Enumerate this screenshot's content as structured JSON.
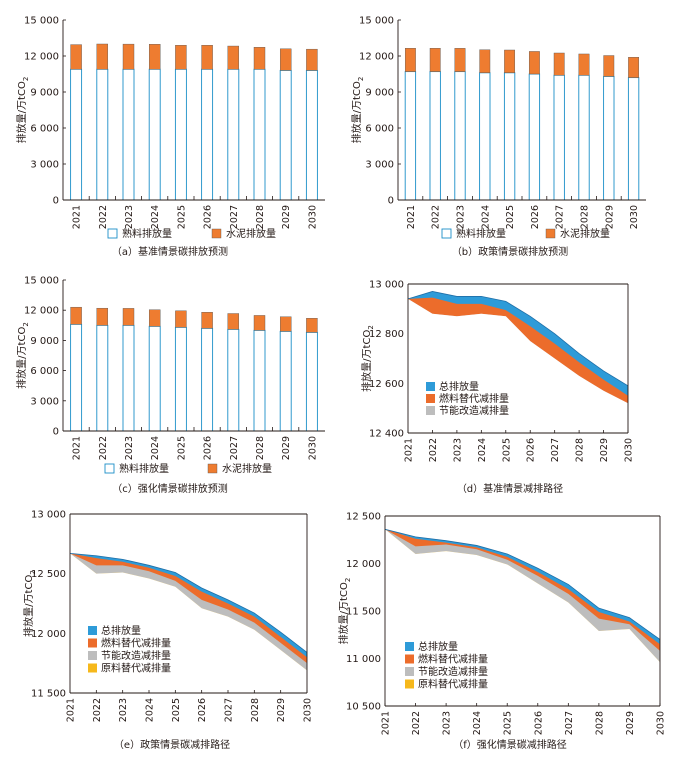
{
  "colors": {
    "fuel": "#1b8fc8",
    "cement": "#ee7c30",
    "total": "#2e9bd8",
    "fuel_sub": "#ec6c2b",
    "energy": "#bdbdbd",
    "raw": "#f6b81b",
    "axis": "#231815"
  },
  "chart_data": [
    {
      "type": "bar",
      "stacked": true,
      "caption": "（a）基准情景碳排放预测",
      "ylabel": "排放量/万tCO",
      "ylabel_sub": "2",
      "ylim": [
        0,
        15000
      ],
      "yticks": [
        "0",
        "3 000",
        "6 000",
        "9 000",
        "12 000",
        "15 000"
      ],
      "categories": [
        "2021",
        "2022",
        "2023",
        "2024",
        "2025",
        "2026",
        "2027",
        "2028",
        "2029",
        "2030"
      ],
      "series": [
        {
          "name": "熟料排放量",
          "style": "hollow",
          "values": [
            10900,
            10900,
            10900,
            10900,
            10900,
            10900,
            10900,
            10900,
            10800,
            10800
          ]
        },
        {
          "name": "水泥排放量",
          "style": "filled",
          "values": [
            2050,
            2100,
            2090,
            2080,
            2000,
            2000,
            1930,
            1830,
            1800,
            1770
          ]
        }
      ],
      "legend": "bottom"
    },
    {
      "type": "bar",
      "stacked": true,
      "caption": "（b）政策情景碳排放预测",
      "ylabel": "排放量/万tCO",
      "ylabel_sub": "2",
      "ylim": [
        0,
        15000
      ],
      "yticks": [
        "0",
        "3 000",
        "6 000",
        "9 000",
        "12 000",
        "15 000"
      ],
      "categories": [
        "2021",
        "2022",
        "2023",
        "2024",
        "2025",
        "2026",
        "2027",
        "2028",
        "2029",
        "2030"
      ],
      "series": [
        {
          "name": "熟料排放量",
          "style": "hollow",
          "values": [
            10700,
            10700,
            10700,
            10600,
            10600,
            10500,
            10400,
            10400,
            10300,
            10200
          ]
        },
        {
          "name": "水泥排放量",
          "style": "filled",
          "values": [
            1950,
            1950,
            1940,
            1920,
            1900,
            1880,
            1850,
            1770,
            1740,
            1700
          ]
        }
      ],
      "legend": "bottom"
    },
    {
      "type": "bar",
      "stacked": true,
      "caption": "（c）强化情景碳排放预测",
      "ylabel": "排放量/万tCO",
      "ylabel_sub": "2",
      "ylim": [
        0,
        15000
      ],
      "yticks": [
        "0",
        "3 000",
        "6 000",
        "9 000",
        "12 000",
        "15 000"
      ],
      "categories": [
        "2021",
        "2022",
        "2023",
        "2024",
        "2025",
        "2026",
        "2027",
        "2028",
        "2029",
        "2030"
      ],
      "series": [
        {
          "name": "熟料排放量",
          "style": "hollow",
          "values": [
            10600,
            10500,
            10500,
            10400,
            10300,
            10200,
            10100,
            10000,
            9900,
            9800
          ]
        },
        {
          "name": "水泥排放量",
          "style": "filled",
          "values": [
            1700,
            1700,
            1680,
            1650,
            1640,
            1600,
            1570,
            1480,
            1450,
            1400
          ]
        }
      ],
      "legend": "bottom"
    },
    {
      "type": "area",
      "caption": "（d）基准情景减排路径",
      "ylabel": "排放量/万tCO",
      "ylabel_sub": "2",
      "ylim": [
        12400,
        13000
      ],
      "yticks": [
        "12 400",
        "12 600",
        "12 800",
        "13 000"
      ],
      "categories": [
        "2021",
        "2022",
        "2023",
        "2024",
        "2025",
        "2026",
        "2027",
        "2028",
        "2029",
        "2030"
      ],
      "series": [
        {
          "name": "总排放量",
          "values": [
            12940,
            12970,
            12950,
            12950,
            12930,
            12870,
            12800,
            12720,
            12650,
            12590
          ]
        },
        {
          "name": "燃料替代减排量",
          "values": [
            12940,
            12945,
            12920,
            12920,
            12895,
            12830,
            12760,
            12685,
            12615,
            12550
          ]
        },
        {
          "name": "节能改造减排量",
          "values": [
            12940,
            12880,
            12870,
            12880,
            12870,
            12770,
            12700,
            12630,
            12570,
            12520
          ]
        }
      ],
      "legend": "bottom-left"
    },
    {
      "type": "area",
      "caption": "（e）政策情景碳减排路径",
      "ylabel": "排放量/万tCO",
      "ylabel_sub": "2",
      "ylim": [
        11500,
        13000
      ],
      "yticks": [
        "11 500",
        "12 000",
        "12 500",
        "13 000"
      ],
      "categories": [
        "2021",
        "2022",
        "2023",
        "2024",
        "2025",
        "2026",
        "2027",
        "2028",
        "2029",
        "2030"
      ],
      "series": [
        {
          "name": "总排放量",
          "values": [
            12670,
            12650,
            12620,
            12570,
            12510,
            12380,
            12280,
            12170,
            12010,
            11840
          ]
        },
        {
          "name": "燃料替代减排量",
          "values": [
            12670,
            12630,
            12600,
            12550,
            12480,
            12350,
            12250,
            12140,
            11970,
            11800
          ]
        },
        {
          "name": "节能改造减排量",
          "values": [
            12670,
            12570,
            12570,
            12520,
            12440,
            12280,
            12200,
            12090,
            11920,
            11750
          ]
        },
        {
          "name": "原料替代减排量",
          "values": [
            12670,
            12500,
            12510,
            12460,
            12390,
            12210,
            12140,
            12030,
            11860,
            11690
          ]
        }
      ],
      "legend": "left"
    },
    {
      "type": "area",
      "caption": "（f）强化情景碳减排路径",
      "ylabel": "排放量/万tCO",
      "ylabel_sub": "2",
      "ylim": [
        10500,
        12500
      ],
      "yticks": [
        "10 500",
        "11 000",
        "11 500",
        "12 000",
        "12 500"
      ],
      "categories": [
        "2021",
        "2022",
        "2023",
        "2024",
        "2025",
        "2026",
        "2027",
        "2028",
        "2029",
        "2030"
      ],
      "series": [
        {
          "name": "总排放量",
          "values": [
            12360,
            12280,
            12240,
            12190,
            12100,
            11950,
            11780,
            11530,
            11430,
            11200
          ]
        },
        {
          "name": "燃料替代减排量",
          "values": [
            12360,
            12260,
            12220,
            12170,
            12070,
            11910,
            11730,
            11490,
            11390,
            11150
          ]
        },
        {
          "name": "节能改造减排量",
          "values": [
            12360,
            12180,
            12200,
            12150,
            12040,
            11870,
            11680,
            11420,
            11360,
            11080
          ]
        },
        {
          "name": "原料替代减排量",
          "values": [
            12360,
            12100,
            12130,
            12090,
            11990,
            11790,
            11590,
            11290,
            11310,
            10960
          ]
        }
      ],
      "legend": "left"
    }
  ]
}
